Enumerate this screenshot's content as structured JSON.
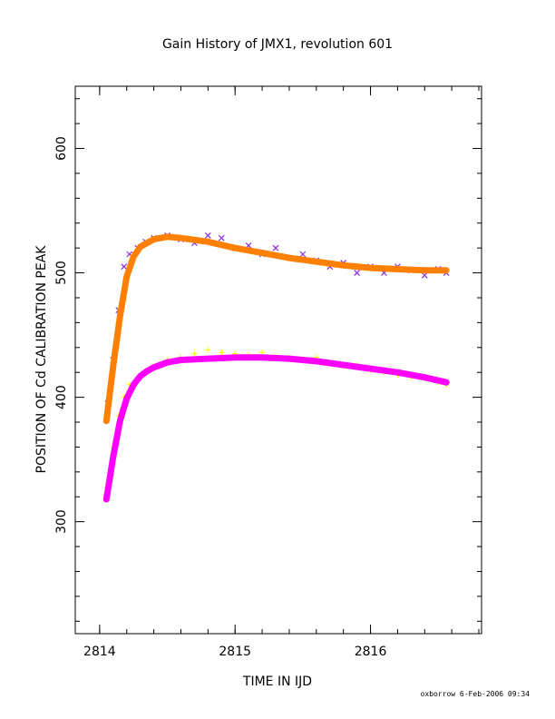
{
  "chart_data": {
    "type": "scatter",
    "title": "Gain History of JMX1, revolution 601",
    "xlabel": "TIME IN IJD",
    "ylabel": "POSITION OF Cd CALIBRATION PEAK",
    "xlim": [
      2813.82,
      2816.82
    ],
    "ylim": [
      210,
      650
    ],
    "x_ticks": [
      2814,
      2815,
      2816
    ],
    "x_tick_labels": [
      "2814",
      "2815",
      "2816"
    ],
    "y_ticks": [
      300,
      400,
      500,
      600
    ],
    "y_tick_labels": [
      "300",
      "400",
      "500",
      "600"
    ],
    "grid": false,
    "legend": "none",
    "series": [
      {
        "marker": "x",
        "color": "#8a2be2",
        "x": [
          2814.06,
          2814.1,
          2814.14,
          2814.18,
          2814.22,
          2814.28,
          2814.34,
          2814.4,
          2814.5,
          2814.6,
          2814.7,
          2814.8,
          2814.9,
          2815.0,
          2815.1,
          2815.2,
          2815.3,
          2815.4,
          2815.5,
          2815.6,
          2815.7,
          2815.8,
          2815.9,
          2816.0,
          2816.1,
          2816.2,
          2816.3,
          2816.4,
          2816.5,
          2816.56
        ],
        "y": [
          395,
          430,
          470,
          505,
          515,
          520,
          525,
          528,
          530,
          527,
          524,
          530,
          528,
          520,
          522,
          515,
          520,
          512,
          515,
          510,
          505,
          508,
          500,
          505,
          500,
          505,
          502,
          498,
          503,
          500
        ]
      },
      {
        "marker": "line",
        "color": "#ff7f00",
        "x": [
          2814.05,
          2814.1,
          2814.15,
          2814.2,
          2814.25,
          2814.3,
          2814.4,
          2814.5,
          2814.6,
          2814.8,
          2815.0,
          2815.2,
          2815.4,
          2815.6,
          2815.8,
          2816.0,
          2816.2,
          2816.4,
          2816.56
        ],
        "y": [
          381,
          425,
          465,
          497,
          513,
          521,
          527,
          529,
          528,
          525,
          520,
          516,
          512,
          509,
          506,
          504,
          503,
          502,
          502
        ]
      },
      {
        "marker": "+",
        "color": "#ffff00",
        "x": [
          2814.06,
          2814.1,
          2814.14,
          2814.18,
          2814.22,
          2814.28,
          2814.34,
          2814.4,
          2814.5,
          2814.6,
          2814.7,
          2814.8,
          2814.9,
          2815.0,
          2815.1,
          2815.2,
          2815.3,
          2815.4,
          2815.5,
          2815.6,
          2815.7,
          2815.8,
          2815.9,
          2816.0,
          2816.1,
          2816.2,
          2816.3,
          2816.4,
          2816.5,
          2816.56
        ],
        "y": [
          325,
          360,
          385,
          400,
          410,
          415,
          420,
          425,
          430,
          432,
          435,
          438,
          436,
          435,
          434,
          436,
          433,
          432,
          430,
          432,
          428,
          425,
          426,
          422,
          420,
          418,
          416,
          415,
          412,
          410
        ]
      },
      {
        "marker": "line",
        "color": "#ff00ff",
        "x": [
          2814.05,
          2814.1,
          2814.15,
          2814.2,
          2814.25,
          2814.3,
          2814.35,
          2814.4,
          2814.5,
          2814.6,
          2814.8,
          2815.0,
          2815.2,
          2815.4,
          2815.6,
          2815.8,
          2816.0,
          2816.2,
          2816.4,
          2816.56
        ],
        "y": [
          318,
          352,
          381,
          399,
          410,
          417,
          421,
          424,
          428,
          430,
          431,
          432,
          432,
          431,
          429,
          426,
          423,
          420,
          416,
          412
        ]
      }
    ],
    "footer": "oxborrow  6-Feb-2006 09:34"
  }
}
